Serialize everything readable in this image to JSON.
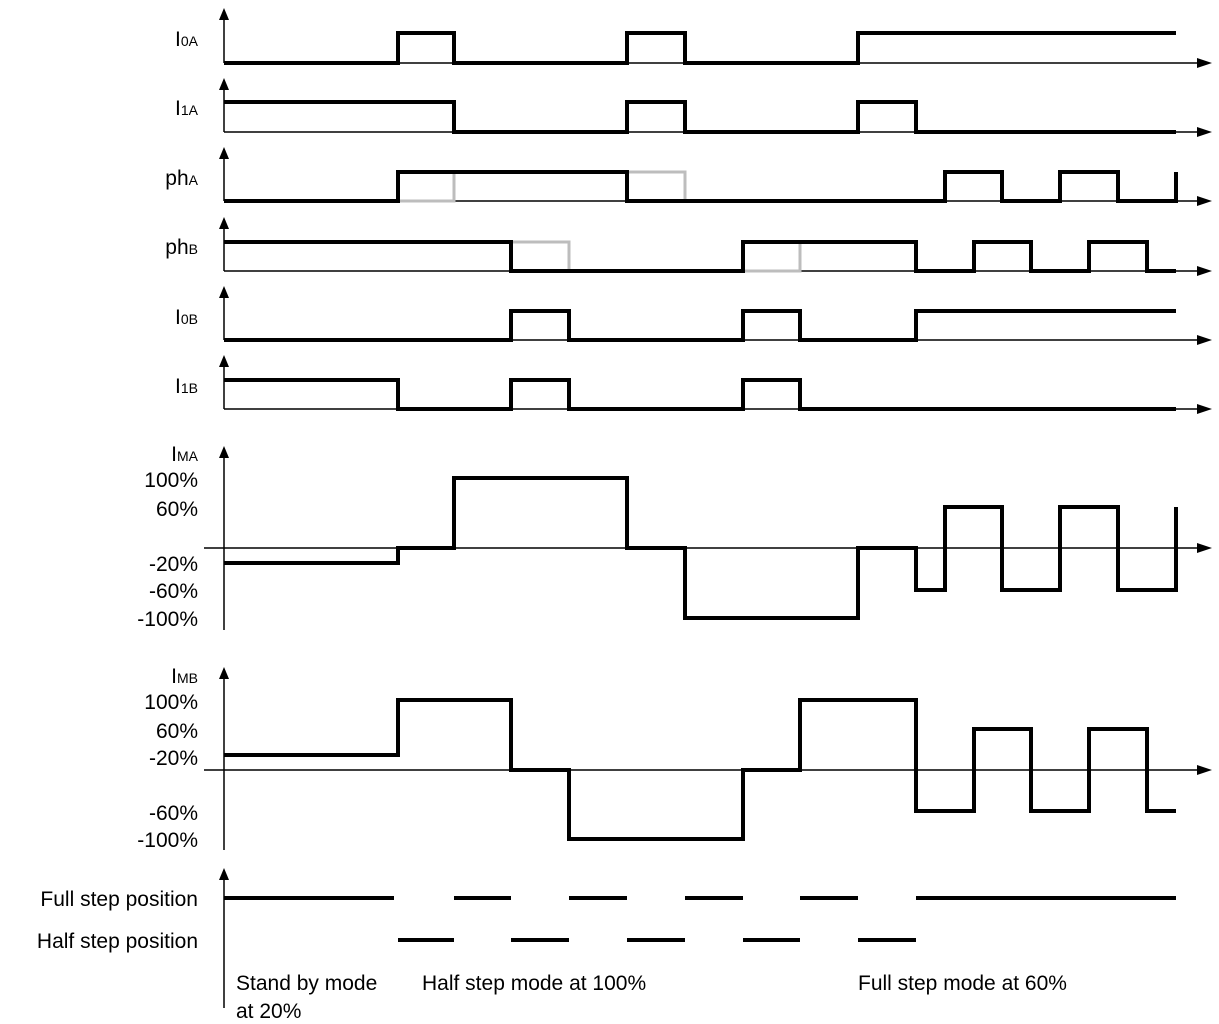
{
  "signals": [
    {
      "id": "i0a",
      "label_main": "I",
      "label_sub": "0A"
    },
    {
      "id": "i1a",
      "label_main": "I",
      "label_sub": "1A"
    },
    {
      "id": "pha",
      "label_main": "ph",
      "label_sub": "A"
    },
    {
      "id": "phb",
      "label_main": "ph",
      "label_sub": "B"
    },
    {
      "id": "i0b",
      "label_main": "I",
      "label_sub": "0B"
    },
    {
      "id": "i1b",
      "label_main": "I",
      "label_sub": "1B"
    }
  ],
  "currents": [
    {
      "id": "ima",
      "label_main": "I",
      "label_sub": "MA",
      "levels": [
        "100%",
        "60%",
        "-20%",
        "-60%",
        "-100%"
      ]
    },
    {
      "id": "imb",
      "label_main": "I",
      "label_sub": "MB",
      "levels": [
        "100%",
        "60%",
        "-20%",
        "-60%",
        "-100%"
      ]
    }
  ],
  "positions": {
    "full_step": "Full step position",
    "half_step": "Half step position"
  },
  "modes": {
    "standby_line1": "Stand by mode",
    "standby_line2": "at 20%",
    "half_step": "Half step mode at 100%",
    "full_step": "Full step mode at 60%"
  }
}
